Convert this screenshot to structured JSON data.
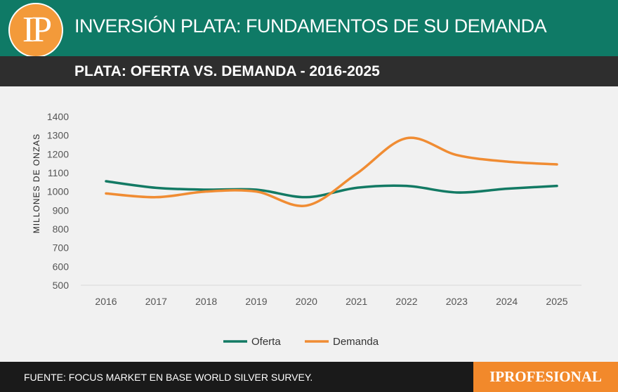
{
  "header": {
    "logo_text": "IP",
    "title": "INVERSIÓN PLATA: FUNDAMENTOS DE SU DEMANDA"
  },
  "subheader": {
    "title": "PLATA: OFERTA VS. DEMANDA - 2016-2025"
  },
  "footer": {
    "source": "FUENTE: FOCUS MARKET EN BASE WORLD SILVER SURVEY.",
    "brand": "IPROFESIONAL"
  },
  "colors": {
    "oferta": "#137a64",
    "demanda": "#f08c33"
  },
  "chart_data": {
    "type": "line",
    "title": "PLATA: OFERTA VS. DEMANDA - 2016-2025",
    "xlabel": "",
    "ylabel": "MILLONES DE ONZAS",
    "categories": [
      "2016",
      "2017",
      "2018",
      "2019",
      "2020",
      "2021",
      "2022",
      "2023",
      "2024",
      "2025"
    ],
    "ylim": [
      500,
      1400
    ],
    "yticks": [
      500,
      600,
      700,
      800,
      900,
      1000,
      1100,
      1200,
      1300,
      1400
    ],
    "series": [
      {
        "name": "Oferta",
        "values": [
          1055,
          1020,
          1010,
          1010,
          970,
          1020,
          1030,
          995,
          1015,
          1030
        ]
      },
      {
        "name": "Demanda",
        "values": [
          990,
          970,
          1000,
          1000,
          925,
          1095,
          1285,
          1195,
          1160,
          1145
        ]
      }
    ],
    "legend": "bottom-center"
  }
}
